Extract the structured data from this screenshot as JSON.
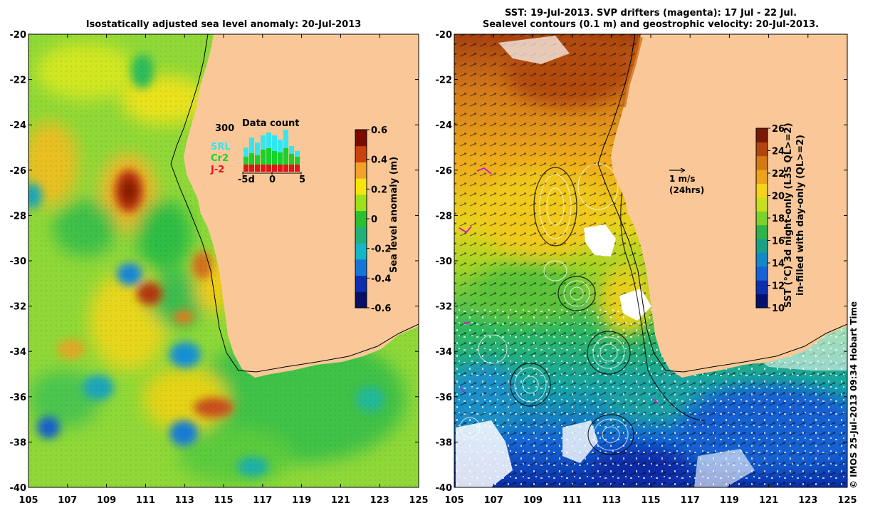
{
  "left_panel": {
    "title": "Isostatically adjusted sea level anomaly: 20-Jul-2013",
    "colorbar": {
      "label": "Sea level anomaly (m)",
      "ticks": [
        "0.6",
        "0.4",
        "0.2",
        "0",
        "-0.2",
        "-0.4",
        "-0.6"
      ],
      "colors": [
        "#7a0b00",
        "#c8430f",
        "#f2a12a",
        "#f5e50d",
        "#9ee01b",
        "#2cbf32",
        "#20b07a",
        "#17b5c8",
        "#1477d8",
        "#0b2fae",
        "#070f66"
      ]
    },
    "inset": {
      "title": "Data count",
      "ymax_label": "300",
      "legend": [
        {
          "name": "SRL",
          "color": "#33e6f0"
        },
        {
          "name": "Cr2",
          "color": "#19d12a"
        },
        {
          "name": "J-2",
          "color": "#e0141a"
        }
      ],
      "x_ticks": [
        "-5d",
        "0",
        "5"
      ]
    }
  },
  "right_panel": {
    "title_line1": "SST: 19-Jul-2013. SVP drifters (magenta): 17 Jul - 22 Jul.",
    "title_line2": "Sealevel contours (0.1 m) and geostrophic velocity: 20-Jul-2013.",
    "colorbar": {
      "label_line1": "SST (°C) 3d night-only (L3S QL>=2)",
      "label_line2": "in-filled with day-only (QL>=2)",
      "ticks": [
        "26",
        "24",
        "22",
        "20",
        "18",
        "16",
        "14",
        "12",
        "10"
      ],
      "colors": [
        "#7a1a05",
        "#b2450e",
        "#d57a12",
        "#eca51a",
        "#f5d318",
        "#c8df1e",
        "#7cd12b",
        "#2eb34d",
        "#1aa08a",
        "#1488c7",
        "#1761d8",
        "#0b2fb0",
        "#060f70"
      ]
    },
    "scale_arrow": {
      "speed": "1 m/s",
      "period": "(24hrs)"
    }
  },
  "axes": {
    "y_ticks": [
      "-20",
      "-22",
      "-24",
      "-26",
      "-28",
      "-30",
      "-32",
      "-34",
      "-36",
      "-38",
      "-40"
    ],
    "x_ticks": [
      "105",
      "107",
      "109",
      "111",
      "113",
      "115",
      "117",
      "119",
      "121",
      "123",
      "125"
    ]
  },
  "colors": {
    "land": "#fac898",
    "sea_base_left": "#8fd838",
    "sea_base_right": "#f2c21c"
  },
  "copyright": "© IMOS 25-Jul-2013 09:34 Hobart Time"
}
